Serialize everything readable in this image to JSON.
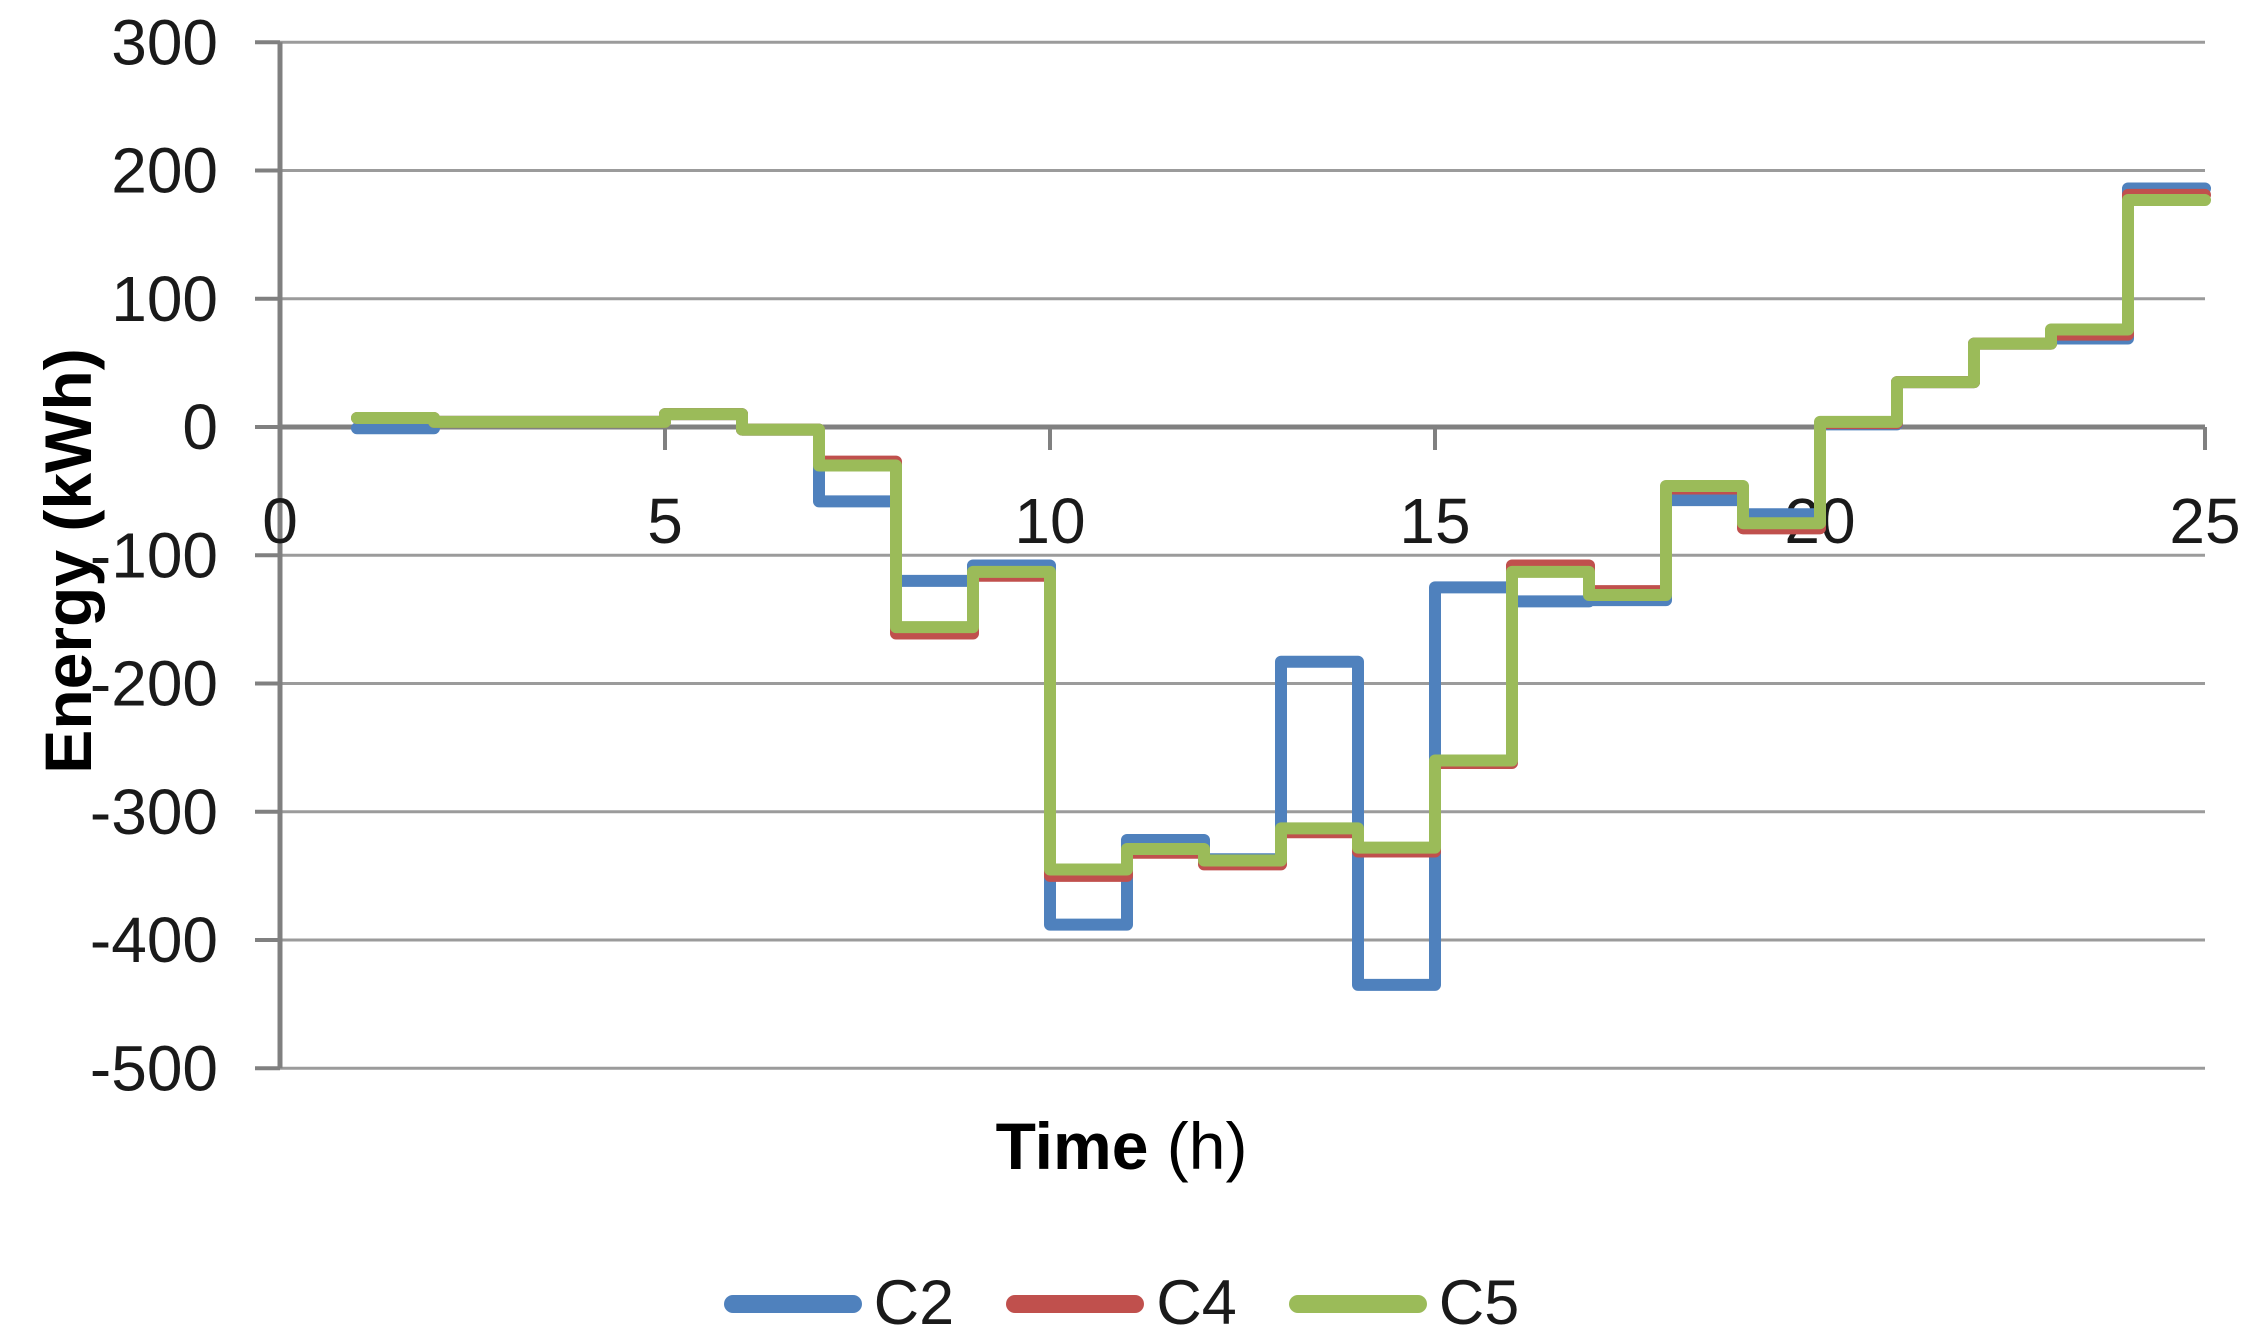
{
  "chart_data": {
    "type": "line",
    "step_style": "post",
    "title": "",
    "xlabel": {
      "bold": "Time",
      "regular": " (h)"
    },
    "ylabel": "Energy (kWh)",
    "xlim": [
      0,
      25
    ],
    "ylim": [
      -500,
      300
    ],
    "x_ticks": [
      0,
      5,
      10,
      15,
      20,
      25
    ],
    "y_ticks": [
      300,
      200,
      100,
      0,
      -100,
      -200,
      -300,
      -400,
      -500
    ],
    "grid": true,
    "legend_position": "bottom",
    "hours": [
      1,
      2,
      3,
      4,
      5,
      6,
      7,
      8,
      9,
      10,
      11,
      12,
      13,
      14,
      15,
      16,
      17,
      18,
      19,
      20,
      21,
      22,
      23,
      24
    ],
    "series": [
      {
        "name": "C2",
        "color": "#4F81BD",
        "values": [
          -1,
          4,
          4,
          4,
          10,
          -2,
          -58,
          -120,
          -108,
          -388,
          -322,
          -337,
          -183,
          -435,
          -125,
          -136,
          -135,
          -57,
          -68,
          2,
          35,
          65,
          69,
          186
        ]
      },
      {
        "name": "C4",
        "color": "#C0504D",
        "values": [
          7,
          4,
          4,
          4,
          10,
          -2,
          -27,
          -161,
          -116,
          -350,
          -332,
          -341,
          -316,
          -331,
          -262,
          -108,
          -128,
          -48,
          -79,
          3,
          35,
          65,
          72,
          181
        ]
      },
      {
        "name": "C5",
        "color": "#9BBB59",
        "values": [
          7,
          4,
          4,
          4,
          10,
          -2,
          -30,
          -156,
          -113,
          -345,
          -329,
          -338,
          -313,
          -328,
          -260,
          -113,
          -131,
          -46,
          -75,
          4,
          35,
          65,
          76,
          177
        ]
      }
    ],
    "colors": {
      "gridline": "#9B9B9B",
      "axis": "#808080",
      "tick_label": "#1A1A1A",
      "title": "#000000",
      "background": "#FFFFFF"
    }
  }
}
